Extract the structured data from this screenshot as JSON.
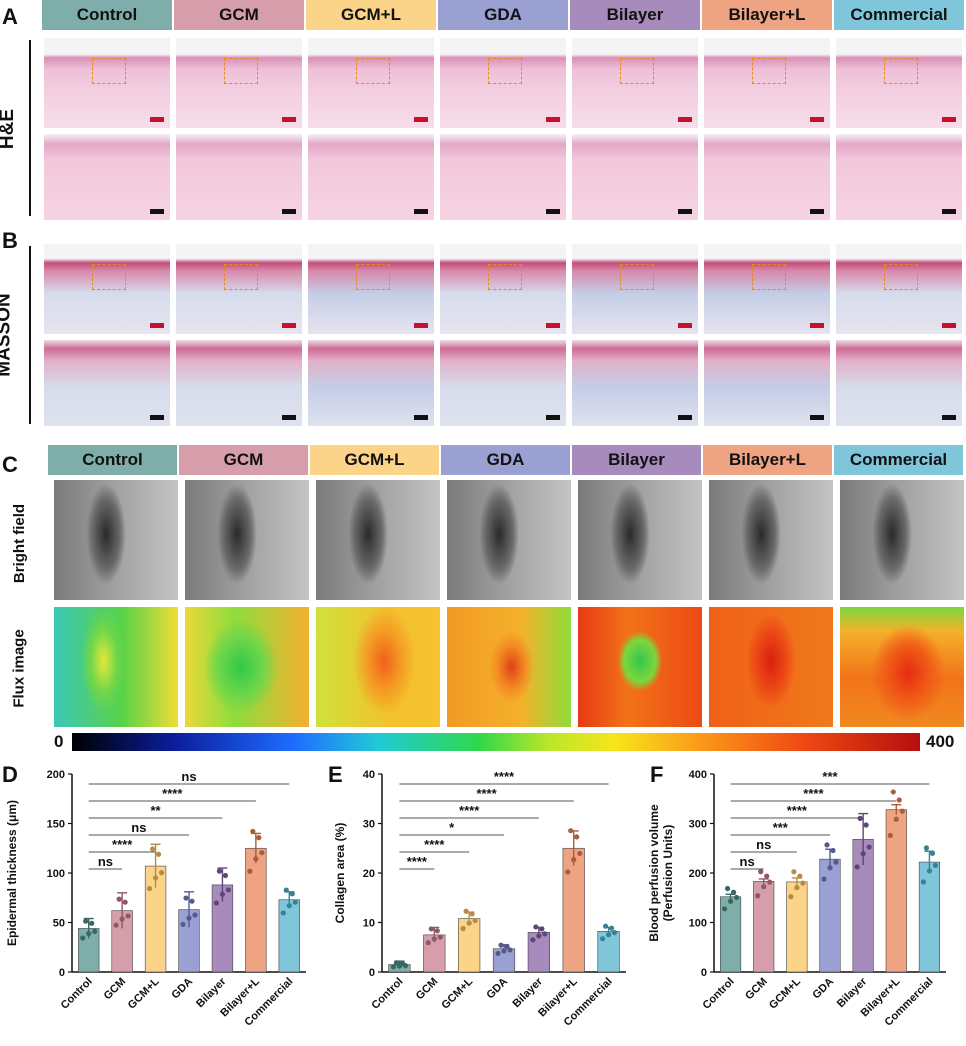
{
  "panel_letters": {
    "A": "A",
    "B": "B",
    "C": "C",
    "D": "D",
    "E": "E",
    "F": "F"
  },
  "groups": [
    "Control",
    "GCM",
    "GCM+L",
    "GDA",
    "Bilayer",
    "Bilayer+L",
    "Commercial"
  ],
  "group_colors": [
    "#7fada9",
    "#d69daa",
    "#fbd389",
    "#9ba0d3",
    "#a78bbd",
    "#eea382",
    "#7fc6da"
  ],
  "row_labels": {
    "he": "H&E",
    "masson": "MASSON",
    "bright_field": "Bright field",
    "flux_image": "Flux image"
  },
  "colorbar": {
    "min_label": "0",
    "max_label": "400"
  },
  "chart_data": [
    {
      "panel": "D",
      "type": "bar",
      "categories": [
        "Control",
        "GCM",
        "GCM+L",
        "GDA",
        "Bilayer",
        "Bilayer+L",
        "Commercial"
      ],
      "values": [
        44,
        62,
        107,
        63,
        88,
        125,
        73
      ],
      "errors": [
        10,
        18,
        22,
        18,
        17,
        15,
        8
      ],
      "ylabel": "Epidermal thickness (μm)",
      "ylim": [
        0,
        200
      ],
      "yticks": [
        0,
        50,
        100,
        150,
        200
      ],
      "significance": [
        {
          "to": 6,
          "label": "ns"
        },
        {
          "to": 5,
          "label": "****"
        },
        {
          "to": 4,
          "label": "**"
        },
        {
          "to": 3,
          "label": "ns"
        },
        {
          "to": 2,
          "label": "****"
        },
        {
          "to": 1,
          "label": "ns"
        }
      ]
    },
    {
      "panel": "E",
      "type": "bar",
      "categories": [
        "Control",
        "GCM",
        "GCM+L",
        "GDA",
        "Bilayer",
        "Bilayer+L",
        "Commercial"
      ],
      "values": [
        1.5,
        7.5,
        10.8,
        4.7,
        8.0,
        25.0,
        8.2
      ],
      "errors": [
        0.7,
        1.5,
        1.3,
        0.8,
        1.0,
        3.5,
        0.8
      ],
      "ylabel": "Collagen area (%)",
      "ylim": [
        0,
        40
      ],
      "yticks": [
        0,
        10,
        20,
        30,
        40
      ],
      "significance": [
        {
          "to": 6,
          "label": "****"
        },
        {
          "to": 5,
          "label": "****"
        },
        {
          "to": 4,
          "label": "****"
        },
        {
          "to": 3,
          "label": "*"
        },
        {
          "to": 2,
          "label": "****"
        },
        {
          "to": 1,
          "label": "****"
        }
      ]
    },
    {
      "panel": "F",
      "type": "bar",
      "categories": [
        "Control",
        "GCM",
        "GCM+L",
        "GDA",
        "Bilayer",
        "Bilayer+L",
        "Commercial"
      ],
      "values": [
        152,
        183,
        182,
        228,
        268,
        328,
        222
      ],
      "errors": [
        5,
        5,
        8,
        20,
        52,
        10,
        22
      ],
      "ylabel": "Blood perfusion volume (Perfusion Units)",
      "ylabel_lines": [
        "Blood perfusion volume",
        "(Perfusion Units)"
      ],
      "ylim": [
        0,
        400
      ],
      "yticks": [
        0,
        100,
        200,
        300,
        400
      ],
      "significance": [
        {
          "to": 6,
          "label": "***"
        },
        {
          "to": 5,
          "label": "****"
        },
        {
          "to": 4,
          "label": "****"
        },
        {
          "to": 3,
          "label": "***"
        },
        {
          "to": 2,
          "label": "ns"
        },
        {
          "to": 1,
          "label": "ns"
        }
      ]
    }
  ]
}
